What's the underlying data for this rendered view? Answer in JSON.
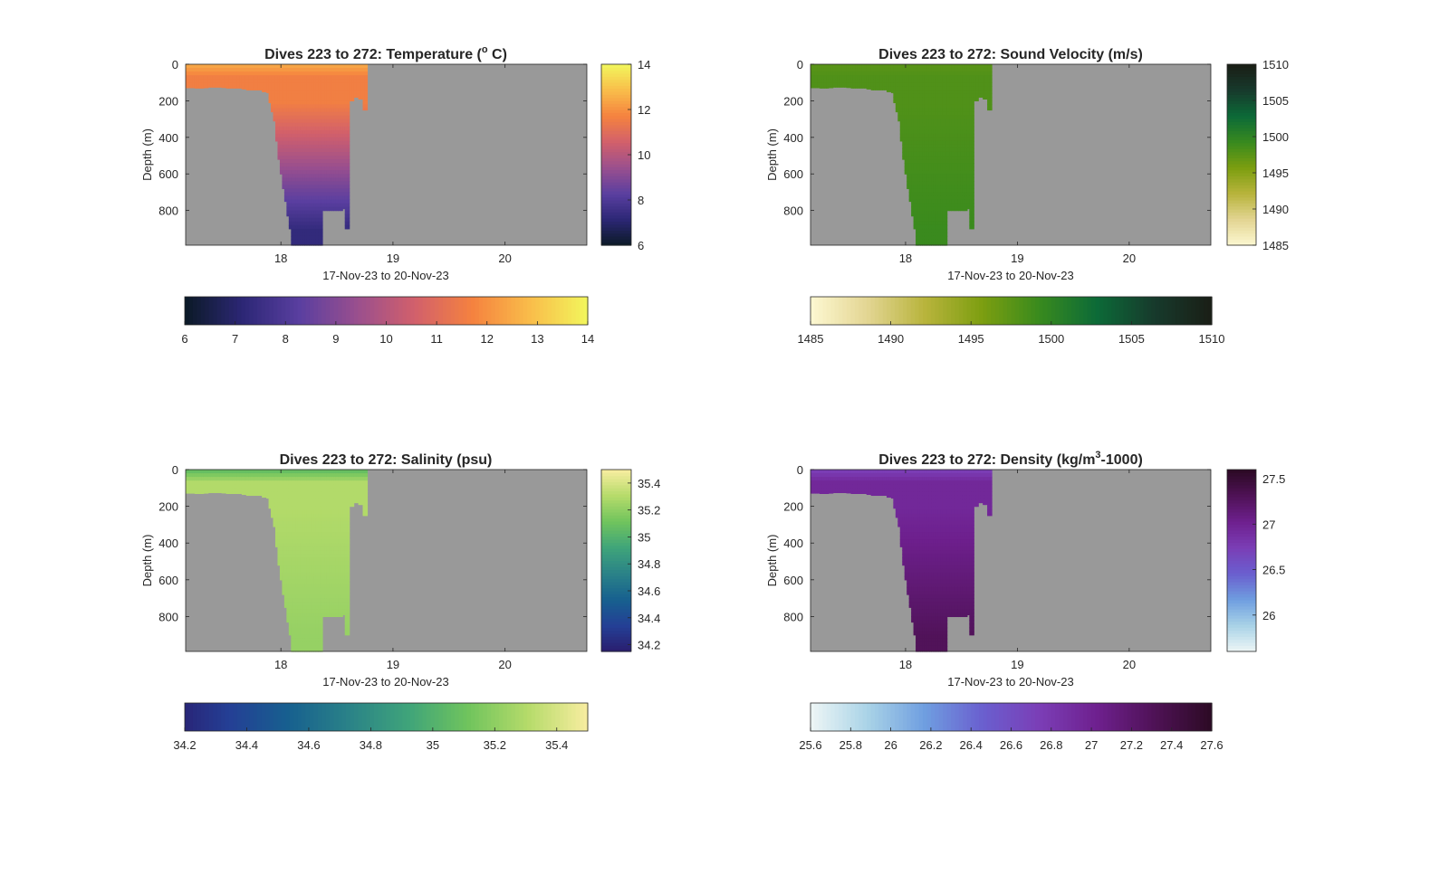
{
  "chart_data": [
    {
      "type": "heatmap",
      "key": "temp",
      "title_prefix": "Dives 223 to 272: Temperature (",
      "title_super": "o",
      "title_suffix": " C)",
      "xlabel": "17-Nov-23 to 20-Nov-23",
      "ylabel": "Depth (m)",
      "xlim": [
        17.15,
        20.73
      ],
      "ylim": [
        0,
        990
      ],
      "xticks": [
        18,
        19,
        20
      ],
      "yticks": [
        0,
        200,
        400,
        600,
        800
      ],
      "clim": [
        6,
        14
      ],
      "cbar_ticks": [
        6,
        8,
        10,
        12,
        14
      ],
      "hbar_ticks": [
        6,
        7,
        8,
        9,
        10,
        11,
        12,
        13,
        14
      ],
      "colormap": [
        "#0b1a26",
        "#2c2775",
        "#5a3fa0",
        "#9a4f8e",
        "#d2606b",
        "#f5823f",
        "#f9bd4a",
        "#f2f65c"
      ],
      "surface_value": 12.4,
      "shallow_value": 11.6,
      "deep_value": 7.3,
      "bottom_depth": [
        128,
        128,
        128,
        128,
        130,
        130,
        130,
        130,
        128,
        128,
        125,
        125,
        125,
        125,
        125,
        125,
        127,
        127,
        130,
        130,
        130,
        130,
        130,
        130,
        130,
        135,
        135,
        140,
        140,
        140,
        140,
        140,
        140,
        140,
        150,
        150,
        155,
        210,
        260,
        310,
        420,
        520,
        600,
        680,
        750,
        830,
        900,
        990,
        990,
        990,
        990,
        990,
        990,
        990,
        990,
        990,
        990,
        990,
        990,
        990,
        990,
        800,
        800,
        800,
        800,
        800,
        800,
        800,
        800,
        800,
        790,
        900,
        900,
        200,
        200,
        180,
        180,
        190,
        190,
        250,
        250
      ]
    },
    {
      "type": "heatmap",
      "key": "sound",
      "title": "Dives 223 to 272: Sound Velocity (m/s)",
      "xlabel": "17-Nov-23 to 20-Nov-23",
      "ylabel": "Depth (m)",
      "xlim": [
        17.15,
        20.73
      ],
      "ylim": [
        0,
        990
      ],
      "xticks": [
        18,
        19,
        20
      ],
      "yticks": [
        0,
        200,
        400,
        600,
        800
      ],
      "clim": [
        1485,
        1510
      ],
      "cbar_ticks": [
        1485,
        1490,
        1495,
        1500,
        1505,
        1510
      ],
      "hbar_ticks": [
        1485,
        1490,
        1495,
        1500,
        1505,
        1510
      ],
      "colormap": [
        "#fdf8d2",
        "#e3d592",
        "#b8b43c",
        "#7c9e10",
        "#388a1e",
        "#0c6a38",
        "#173a2c",
        "#1a1e16"
      ],
      "surface_value": 1497.6,
      "shallow_value": 1498.0,
      "deep_value": 1499.2,
      "bottom_depth": [
        128,
        128,
        128,
        128,
        130,
        130,
        130,
        130,
        128,
        128,
        125,
        125,
        125,
        125,
        125,
        125,
        127,
        127,
        130,
        130,
        130,
        130,
        130,
        130,
        130,
        135,
        135,
        140,
        140,
        140,
        140,
        140,
        140,
        140,
        150,
        150,
        155,
        210,
        260,
        310,
        420,
        520,
        600,
        680,
        750,
        830,
        900,
        990,
        990,
        990,
        990,
        990,
        990,
        990,
        990,
        990,
        990,
        990,
        990,
        990,
        990,
        800,
        800,
        800,
        800,
        800,
        800,
        800,
        800,
        800,
        790,
        900,
        900,
        200,
        200,
        180,
        180,
        190,
        190,
        250,
        250
      ]
    },
    {
      "type": "heatmap",
      "key": "salinity",
      "title": "Dives 223 to 272: Salinity (psu)",
      "xlabel": "17-Nov-23 to 20-Nov-23",
      "ylabel": "Depth (m)",
      "xlim": [
        17.15,
        20.73
      ],
      "ylim": [
        0,
        990
      ],
      "xticks": [
        18,
        19,
        20
      ],
      "yticks": [
        0,
        200,
        400,
        600,
        800
      ],
      "clim": [
        34.15,
        35.5
      ],
      "cbar_ticks": [
        34.2,
        34.4,
        34.6,
        34.8,
        35,
        35.2,
        35.4
      ],
      "hbar_ticks": [
        34.2,
        34.4,
        34.6,
        34.8,
        35,
        35.2,
        35.4
      ],
      "colormap": [
        "#2a1d6e",
        "#243f95",
        "#17608f",
        "#2a8288",
        "#3fa47a",
        "#70c45d",
        "#b5db6a",
        "#f8eda0"
      ],
      "surface_value": 35.08,
      "shallow_value": 35.3,
      "deep_value": 35.22,
      "bottom_depth": [
        128,
        128,
        128,
        128,
        130,
        130,
        130,
        130,
        128,
        128,
        125,
        125,
        125,
        125,
        125,
        125,
        127,
        127,
        130,
        130,
        130,
        130,
        130,
        130,
        130,
        135,
        135,
        140,
        140,
        140,
        140,
        140,
        140,
        140,
        150,
        150,
        155,
        210,
        260,
        310,
        420,
        520,
        600,
        680,
        750,
        830,
        900,
        990,
        990,
        990,
        990,
        990,
        990,
        990,
        990,
        990,
        990,
        990,
        990,
        990,
        990,
        800,
        800,
        800,
        800,
        800,
        800,
        800,
        800,
        800,
        790,
        900,
        900,
        200,
        200,
        180,
        180,
        190,
        190,
        250,
        250
      ]
    },
    {
      "type": "heatmap",
      "key": "density",
      "title_prefix": "Dives 223 to 272: Density (kg/m",
      "title_super": "3",
      "title_suffix": "-1000)",
      "xlabel": "17-Nov-23 to 20-Nov-23",
      "ylabel": "Depth (m)",
      "xlim": [
        17.15,
        20.73
      ],
      "ylim": [
        0,
        990
      ],
      "xticks": [
        18,
        19,
        20
      ],
      "yticks": [
        0,
        200,
        400,
        600,
        800
      ],
      "clim": [
        25.6,
        27.6
      ],
      "cbar_ticks": [
        26,
        26.5,
        27,
        27.5
      ],
      "hbar_ticks": [
        25.6,
        25.8,
        26,
        26.2,
        26.4,
        26.6,
        26.8,
        27,
        27.2,
        27.4,
        27.6
      ],
      "colormap": [
        "#eef6f6",
        "#a9d3e7",
        "#6f9ee0",
        "#6a5fcf",
        "#7b3eb6",
        "#6e208e",
        "#4f1256",
        "#2c0a24"
      ],
      "surface_value": 26.75,
      "shallow_value": 26.95,
      "deep_value": 27.3,
      "bottom_depth": [
        128,
        128,
        128,
        128,
        130,
        130,
        130,
        130,
        128,
        128,
        125,
        125,
        125,
        125,
        125,
        125,
        127,
        127,
        130,
        130,
        130,
        130,
        130,
        130,
        130,
        135,
        135,
        140,
        140,
        140,
        140,
        140,
        140,
        140,
        150,
        150,
        155,
        210,
        260,
        310,
        420,
        520,
        600,
        680,
        750,
        830,
        900,
        990,
        990,
        990,
        990,
        990,
        990,
        990,
        990,
        990,
        990,
        990,
        990,
        990,
        990,
        800,
        800,
        800,
        800,
        800,
        800,
        800,
        800,
        800,
        790,
        900,
        900,
        200,
        200,
        180,
        180,
        190,
        190,
        250,
        250
      ]
    }
  ],
  "colors": {
    "land": "#999999",
    "axis": "#262626",
    "background": "#ffffff"
  }
}
